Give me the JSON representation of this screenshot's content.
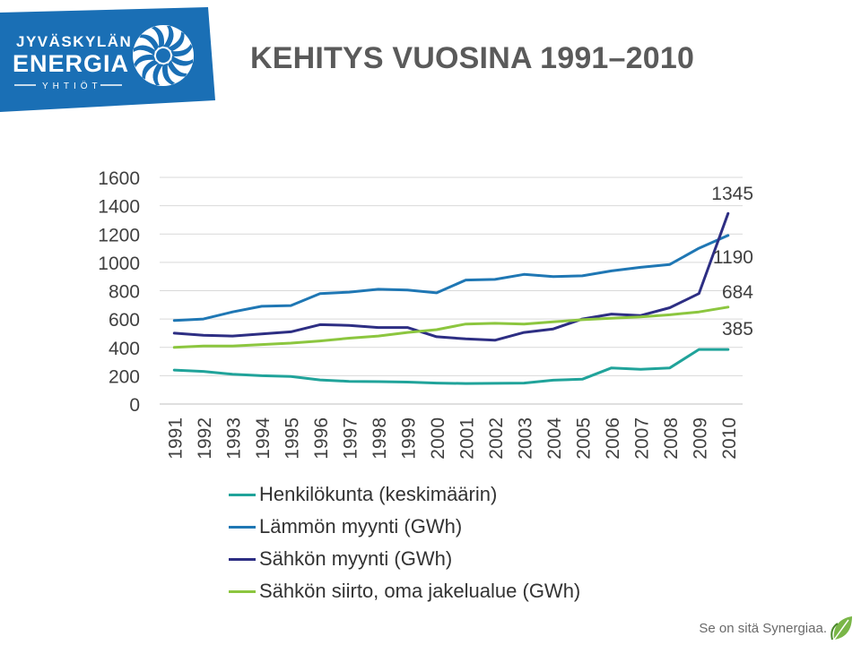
{
  "logo": {
    "line1": "JYVÄSKYLÄN",
    "line2": "ENERGIA",
    "line3": "YHTIÖT",
    "background": "#1a6fb5"
  },
  "title": "KEHITYS VUOSINA 1991–2010",
  "chart_data": {
    "type": "line",
    "x": [
      "1991",
      "1992",
      "1993",
      "1994",
      "1995",
      "1996",
      "1997",
      "1998",
      "1999",
      "2000",
      "2001",
      "2002",
      "2003",
      "2004",
      "2005",
      "2006",
      "2007",
      "2008",
      "2009",
      "2010"
    ],
    "ylim": [
      0,
      1600
    ],
    "yticks": [
      "0",
      "200",
      "400",
      "600",
      "800",
      "1000",
      "1200",
      "1400",
      "1600"
    ],
    "grid": true,
    "legend_position": "bottom-left",
    "series": [
      {
        "name": "Henkilökunta (keskimäärin)",
        "color": "#20a39a",
        "values": [
          240,
          230,
          210,
          200,
          195,
          170,
          160,
          158,
          155,
          148,
          145,
          146,
          148,
          168,
          175,
          255,
          245,
          255,
          385,
          385
        ]
      },
      {
        "name": "Lämmön myynti (GWh)",
        "color": "#1f77b4",
        "values": [
          590,
          600,
          650,
          690,
          695,
          780,
          790,
          810,
          805,
          785,
          875,
          880,
          915,
          900,
          905,
          940,
          965,
          985,
          1100,
          1190
        ]
      },
      {
        "name": "Sähkön myynti (GWh)",
        "color": "#2d2e83",
        "values": [
          500,
          485,
          480,
          495,
          510,
          560,
          555,
          540,
          540,
          475,
          460,
          450,
          505,
          530,
          600,
          635,
          625,
          680,
          780,
          1345
        ]
      },
      {
        "name": "Sähkön siirto, oma jakelualue (GWh)",
        "color": "#8cc63f",
        "values": [
          400,
          410,
          410,
          420,
          430,
          445,
          465,
          480,
          505,
          525,
          565,
          570,
          565,
          580,
          595,
          605,
          615,
          630,
          650,
          684
        ]
      }
    ],
    "end_labels": [
      {
        "text": "1345",
        "series": 2
      },
      {
        "text": "1190",
        "series": 1
      },
      {
        "text": "684",
        "series": 3
      },
      {
        "text": "385",
        "series": 0
      }
    ]
  },
  "footer": {
    "text": "Se on sitä Synergiaa.",
    "leaf_color": "#7ab648"
  }
}
